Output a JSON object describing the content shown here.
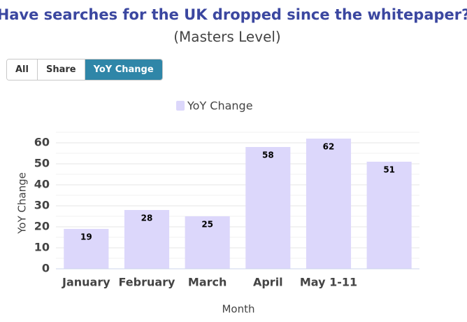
{
  "buttons": [
    "All",
    "Share",
    "YoY Change"
  ],
  "selected_button": 2,
  "chart_data": {
    "type": "bar",
    "title": "Have searches for the UK dropped since the whitepaper?",
    "subtitle": "(Masters Level)",
    "x_label": "Month",
    "y_label": "YoY Change",
    "categories": [
      "January",
      "February",
      "March",
      "April",
      "May 1-11",
      null
    ],
    "series": [
      {
        "name": "YoY Change",
        "color": "#dcd7fb",
        "values": [
          19,
          28,
          25,
          58,
          62,
          51
        ]
      }
    ],
    "ylim": [
      0,
      65
    ],
    "yticks": [
      0,
      10,
      20,
      30,
      40,
      50,
      60
    ],
    "minor_yticks": [
      5,
      15,
      25,
      35,
      45,
      55,
      65
    ],
    "grid": true,
    "legend": "top"
  }
}
